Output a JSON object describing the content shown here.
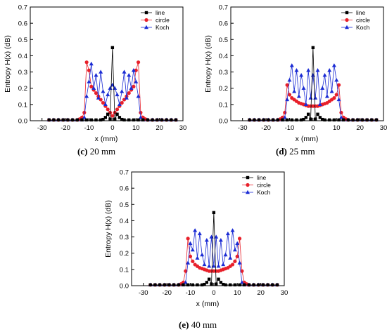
{
  "colors": {
    "line": "#000000",
    "circle": "#e8202a",
    "koch": "#1a2bd4",
    "axis": "#000000"
  },
  "panels": [
    {
      "caption_letter": "(c)",
      "caption_text": " 20 mm"
    },
    {
      "caption_letter": "(d)",
      "caption_text": " 25 mm"
    },
    {
      "caption_letter": "(e)",
      "caption_text": " 40 mm"
    }
  ],
  "chart_data": [
    {
      "type": "line",
      "xlabel": "x (mm)",
      "ylabel": "Entropy H(x) (dB)",
      "xlim": [
        -35,
        30
      ],
      "ylim": [
        0,
        0.7
      ],
      "xticks": [
        -30,
        -20,
        -10,
        0,
        10,
        20,
        30
      ],
      "yticks": [
        0.0,
        0.1,
        0.2,
        0.3,
        0.4,
        0.5,
        0.6,
        0.7
      ],
      "legend_position": "top-right",
      "series": [
        {
          "name": "line",
          "marker": "square",
          "x": [
            -27,
            -25,
            -23,
            -21,
            -19,
            -17,
            -15,
            -13,
            -11,
            -9,
            -7,
            -5,
            -4,
            -3,
            -2,
            -1,
            0,
            1,
            2,
            3,
            4,
            5,
            7,
            9,
            11,
            13,
            15,
            17,
            19,
            21,
            23,
            25,
            27
          ],
          "y": [
            0.005,
            0.005,
            0.005,
            0.005,
            0.005,
            0.005,
            0.005,
            0.005,
            0.005,
            0.005,
            0.005,
            0.005,
            0.008,
            0.02,
            0.04,
            0.01,
            0.45,
            0.01,
            0.04,
            0.02,
            0.008,
            0.005,
            0.005,
            0.005,
            0.005,
            0.005,
            0.005,
            0.005,
            0.005,
            0.005,
            0.005,
            0.005,
            0.005
          ]
        },
        {
          "name": "circle",
          "marker": "circle",
          "x": [
            -27,
            -25,
            -23,
            -21,
            -19,
            -17,
            -15,
            -14,
            -13,
            -12,
            -11,
            -10,
            -9,
            -8,
            -7,
            -6,
            -5,
            -4,
            -3,
            -2,
            -1,
            0,
            1,
            2,
            3,
            4,
            5,
            6,
            7,
            8,
            9,
            10,
            11,
            12,
            13,
            14,
            15,
            17,
            19,
            21,
            23,
            25,
            27
          ],
          "y": [
            0.005,
            0.005,
            0.005,
            0.005,
            0.005,
            0.005,
            0.005,
            0.01,
            0.02,
            0.05,
            0.36,
            0.31,
            0.21,
            0.19,
            0.17,
            0.15,
            0.13,
            0.11,
            0.09,
            0.07,
            0.05,
            0.03,
            0.05,
            0.07,
            0.09,
            0.11,
            0.13,
            0.15,
            0.17,
            0.19,
            0.21,
            0.31,
            0.36,
            0.05,
            0.02,
            0.01,
            0.005,
            0.005,
            0.005,
            0.005,
            0.005,
            0.005,
            0.005
          ]
        },
        {
          "name": "Koch",
          "marker": "triangle",
          "x": [
            -27,
            -25,
            -23,
            -21,
            -19,
            -17,
            -15,
            -13,
            -12,
            -11,
            -10,
            -9,
            -8,
            -7,
            -6,
            -5,
            -4,
            -3,
            -2,
            -1,
            0,
            1,
            2,
            3,
            4,
            5,
            6,
            7,
            8,
            9,
            10,
            11,
            12,
            13,
            15,
            17,
            19,
            21,
            23,
            25,
            27
          ],
          "y": [
            0.005,
            0.005,
            0.005,
            0.005,
            0.005,
            0.005,
            0.005,
            0.005,
            0.02,
            0.15,
            0.24,
            0.35,
            0.2,
            0.28,
            0.14,
            0.3,
            0.18,
            0.1,
            0.16,
            0.2,
            0.22,
            0.2,
            0.16,
            0.1,
            0.18,
            0.3,
            0.14,
            0.28,
            0.2,
            0.31,
            0.24,
            0.15,
            0.02,
            0.005,
            0.005,
            0.005,
            0.005,
            0.005,
            0.005,
            0.005,
            0.005
          ]
        }
      ]
    },
    {
      "type": "line",
      "xlabel": "x (mm)",
      "ylabel": "Entropy H(x) (dB)",
      "xlim": [
        -35,
        30
      ],
      "ylim": [
        0,
        0.7
      ],
      "xticks": [
        -30,
        -20,
        -10,
        0,
        10,
        20,
        30
      ],
      "yticks": [
        0.0,
        0.1,
        0.2,
        0.3,
        0.4,
        0.5,
        0.6,
        0.7
      ],
      "legend_position": "top-right",
      "series": [
        {
          "name": "line",
          "marker": "square",
          "x": [
            -27,
            -25,
            -23,
            -21,
            -19,
            -17,
            -15,
            -13,
            -11,
            -9,
            -7,
            -5,
            -4,
            -3,
            -2,
            -1,
            0,
            1,
            2,
            3,
            4,
            5,
            7,
            9,
            11,
            13,
            15,
            17,
            19,
            21,
            23,
            25,
            27
          ],
          "y": [
            0.005,
            0.005,
            0.005,
            0.005,
            0.005,
            0.005,
            0.005,
            0.005,
            0.005,
            0.005,
            0.005,
            0.005,
            0.008,
            0.02,
            0.04,
            0.01,
            0.45,
            0.01,
            0.04,
            0.02,
            0.008,
            0.005,
            0.005,
            0.005,
            0.005,
            0.005,
            0.005,
            0.005,
            0.005,
            0.005,
            0.005,
            0.005,
            0.005
          ]
        },
        {
          "name": "circle",
          "marker": "circle",
          "x": [
            -27,
            -25,
            -23,
            -21,
            -19,
            -17,
            -15,
            -14,
            -13,
            -12,
            -11,
            -10,
            -9,
            -8,
            -7,
            -6,
            -5,
            -4,
            -3,
            -2,
            -1,
            0,
            1,
            2,
            3,
            4,
            5,
            6,
            7,
            8,
            9,
            10,
            11,
            12,
            13,
            14,
            15,
            17,
            19,
            21,
            23,
            25,
            27
          ],
          "y": [
            0.005,
            0.005,
            0.005,
            0.005,
            0.005,
            0.005,
            0.005,
            0.01,
            0.02,
            0.05,
            0.22,
            0.16,
            0.14,
            0.13,
            0.12,
            0.11,
            0.105,
            0.1,
            0.095,
            0.09,
            0.09,
            0.09,
            0.09,
            0.09,
            0.095,
            0.1,
            0.105,
            0.11,
            0.12,
            0.13,
            0.14,
            0.16,
            0.22,
            0.05,
            0.02,
            0.01,
            0.005,
            0.005,
            0.005,
            0.005,
            0.005,
            0.005,
            0.005
          ]
        },
        {
          "name": "Koch",
          "marker": "triangle",
          "x": [
            -27,
            -25,
            -23,
            -21,
            -19,
            -17,
            -15,
            -13,
            -12,
            -11,
            -10,
            -9,
            -8,
            -7,
            -6,
            -5,
            -4,
            -3,
            -2,
            -1,
            0,
            1,
            2,
            3,
            4,
            5,
            6,
            7,
            8,
            9,
            10,
            11,
            12,
            13,
            15,
            17,
            19,
            21,
            23,
            25,
            27
          ],
          "y": [
            0.005,
            0.005,
            0.005,
            0.005,
            0.005,
            0.005,
            0.005,
            0.005,
            0.02,
            0.13,
            0.25,
            0.34,
            0.18,
            0.31,
            0.15,
            0.28,
            0.2,
            0.1,
            0.31,
            0.14,
            0.28,
            0.14,
            0.31,
            0.1,
            0.2,
            0.28,
            0.15,
            0.31,
            0.18,
            0.34,
            0.25,
            0.13,
            0.02,
            0.005,
            0.005,
            0.005,
            0.005,
            0.005,
            0.005,
            0.005,
            0.005
          ]
        }
      ]
    },
    {
      "type": "line",
      "xlabel": "x (mm)",
      "ylabel": "Entropy H(x) (dB)",
      "xlim": [
        -35,
        30
      ],
      "ylim": [
        0,
        0.7
      ],
      "xticks": [
        -30,
        -20,
        -10,
        0,
        10,
        20,
        30
      ],
      "yticks": [
        0.0,
        0.1,
        0.2,
        0.3,
        0.4,
        0.5,
        0.6,
        0.7
      ],
      "legend_position": "top-right",
      "series": [
        {
          "name": "line",
          "marker": "square",
          "x": [
            -27,
            -25,
            -23,
            -21,
            -19,
            -17,
            -15,
            -13,
            -11,
            -9,
            -7,
            -5,
            -4,
            -3,
            -2,
            -1,
            0,
            1,
            2,
            3,
            4,
            5,
            7,
            9,
            11,
            13,
            15,
            17,
            19,
            21,
            23,
            25,
            27
          ],
          "y": [
            0.005,
            0.005,
            0.005,
            0.005,
            0.005,
            0.005,
            0.005,
            0.005,
            0.005,
            0.005,
            0.005,
            0.005,
            0.008,
            0.02,
            0.04,
            0.01,
            0.45,
            0.01,
            0.04,
            0.02,
            0.008,
            0.005,
            0.005,
            0.005,
            0.005,
            0.005,
            0.005,
            0.005,
            0.005,
            0.005,
            0.005,
            0.005,
            0.005
          ]
        },
        {
          "name": "circle",
          "marker": "circle",
          "x": [
            -27,
            -25,
            -23,
            -21,
            -19,
            -17,
            -15,
            -14,
            -13,
            -12,
            -11,
            -10,
            -9,
            -8,
            -7,
            -6,
            -5,
            -4,
            -3,
            -2,
            -1,
            0,
            1,
            2,
            3,
            4,
            5,
            6,
            7,
            8,
            9,
            10,
            11,
            12,
            13,
            14,
            15,
            17,
            19,
            21,
            23,
            25,
            27
          ],
          "y": [
            0.005,
            0.005,
            0.005,
            0.005,
            0.005,
            0.005,
            0.005,
            0.01,
            0.02,
            0.09,
            0.29,
            0.18,
            0.15,
            0.13,
            0.12,
            0.11,
            0.105,
            0.1,
            0.095,
            0.09,
            0.09,
            0.09,
            0.09,
            0.09,
            0.095,
            0.1,
            0.105,
            0.11,
            0.12,
            0.13,
            0.15,
            0.18,
            0.29,
            0.09,
            0.02,
            0.01,
            0.005,
            0.005,
            0.005,
            0.005,
            0.005,
            0.005,
            0.005
          ]
        },
        {
          "name": "Koch",
          "marker": "triangle",
          "x": [
            -27,
            -25,
            -23,
            -21,
            -19,
            -17,
            -15,
            -13,
            -12,
            -11,
            -10,
            -9,
            -8,
            -7,
            -6,
            -5,
            -4,
            -3,
            -2,
            -1,
            0,
            1,
            2,
            3,
            4,
            5,
            6,
            7,
            8,
            9,
            10,
            11,
            12,
            13,
            15,
            17,
            19,
            21,
            23,
            25,
            27
          ],
          "y": [
            0.005,
            0.005,
            0.005,
            0.005,
            0.005,
            0.005,
            0.005,
            0.005,
            0.02,
            0.14,
            0.26,
            0.22,
            0.34,
            0.17,
            0.32,
            0.19,
            0.13,
            0.28,
            0.12,
            0.3,
            0.12,
            0.3,
            0.12,
            0.28,
            0.13,
            0.19,
            0.32,
            0.17,
            0.34,
            0.22,
            0.26,
            0.14,
            0.02,
            0.005,
            0.005,
            0.005,
            0.005,
            0.005,
            0.005,
            0.005,
            0.005
          ]
        }
      ]
    }
  ]
}
